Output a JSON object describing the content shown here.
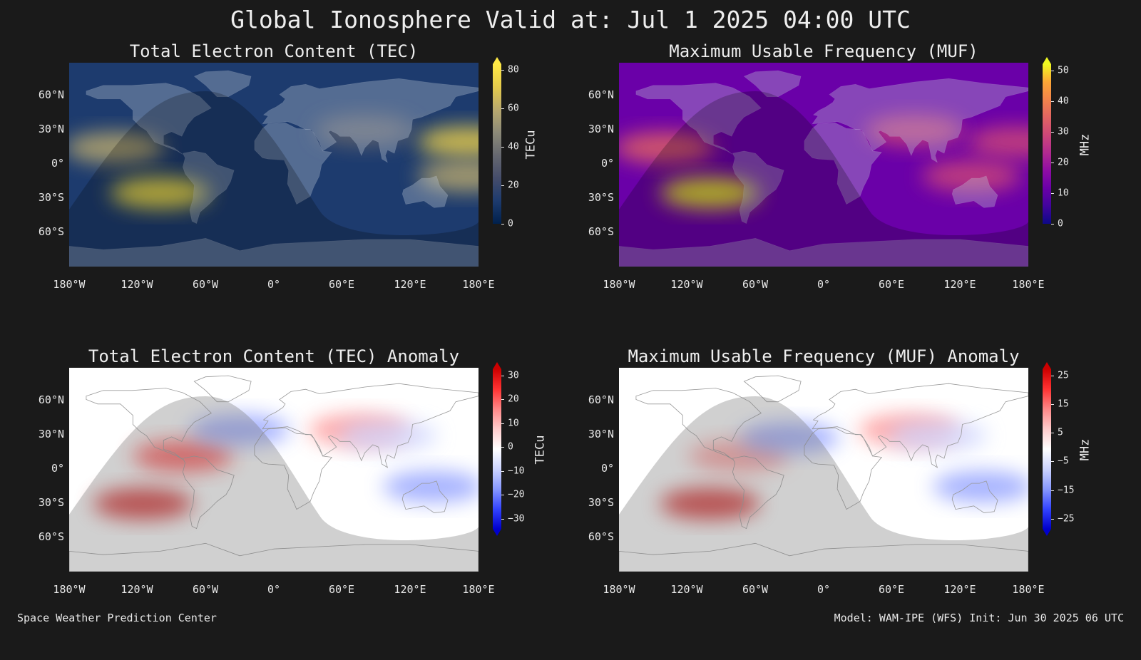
{
  "main_title": "Global Ionosphere Valid at: Jul 1 2025 04:00 UTC",
  "footer": {
    "left": "Space Weather Prediction Center",
    "right": "Model: WAM-IPE (WFS) Init: Jun 30 2025 06 UTC"
  },
  "chart_data": [
    {
      "type": "heatmap",
      "id": "tec",
      "title": "Total Electron Content (TEC)",
      "colorbar_label": "TECu",
      "colorbar_ticks": [
        "0",
        "20",
        "40",
        "60",
        "80"
      ],
      "colormap": [
        "#00204c",
        "#1d3b6e",
        "#454d6b",
        "#666870",
        "#8c8a78",
        "#b9a96e",
        "#e5cb4c",
        "#ffe945"
      ],
      "xlim": [
        -180,
        180
      ],
      "ylim": [
        -90,
        90
      ],
      "x_ticks": [
        "180°W",
        "120°W",
        "60°W",
        "0°",
        "60°E",
        "120°E",
        "180°E"
      ],
      "y_ticks": [
        "60°N",
        "30°N",
        "0°",
        "30°S",
        "60°S"
      ],
      "features": [
        {
          "lon": -140,
          "lat": 15,
          "value": 60
        },
        {
          "lon": -100,
          "lat": -25,
          "value": 75
        },
        {
          "lon": 170,
          "lat": 20,
          "value": 70
        },
        {
          "lon": 170,
          "lat": -10,
          "value": 55
        },
        {
          "lon": 80,
          "lat": 30,
          "value": 35
        }
      ]
    },
    {
      "type": "heatmap",
      "id": "muf",
      "title": "Maximum Usable Frequency (MUF)",
      "colorbar_label": "MHz",
      "colorbar_ticks": [
        "0",
        "10",
        "20",
        "30",
        "40",
        "50"
      ],
      "colormap": [
        "#0d0887",
        "#41049d",
        "#6a00a8",
        "#8f0da4",
        "#b12a90",
        "#cc4778",
        "#e16462",
        "#f2844b",
        "#fca636",
        "#f0f921"
      ],
      "xlim": [
        -180,
        180
      ],
      "ylim": [
        -90,
        90
      ],
      "x_ticks": [
        "180°W",
        "120°W",
        "60°W",
        "0°",
        "60°E",
        "120°E",
        "180°E"
      ],
      "y_ticks": [
        "60°N",
        "30°N",
        "0°",
        "30°S",
        "60°S"
      ],
      "features": [
        {
          "lon": -140,
          "lat": 15,
          "value": 35
        },
        {
          "lon": -100,
          "lat": -25,
          "value": 48
        },
        {
          "lon": 170,
          "lat": 20,
          "value": 30
        },
        {
          "lon": 130,
          "lat": -10,
          "value": 28
        },
        {
          "lon": 80,
          "lat": 30,
          "value": 28
        }
      ]
    },
    {
      "type": "heatmap",
      "id": "tec_anomaly",
      "title": "Total Electron Content (TEC) Anomaly",
      "colorbar_label": "TECu",
      "colorbar_ticks": [
        "−30",
        "−20",
        "−10",
        "0",
        "10",
        "20",
        "30"
      ],
      "colormap": [
        "#0000cc",
        "#3344ff",
        "#8899ff",
        "#ccd4ff",
        "#ffffff",
        "#ffcccc",
        "#ff8888",
        "#ff3333",
        "#cc0000"
      ],
      "xlim": [
        -180,
        180
      ],
      "ylim": [
        -90,
        90
      ],
      "x_ticks": [
        "180°W",
        "120°W",
        "60°W",
        "0°",
        "60°E",
        "120°E",
        "180°E"
      ],
      "y_ticks": [
        "60°N",
        "30°N",
        "0°",
        "30°S",
        "60°S"
      ],
      "features": [
        {
          "lon": -80,
          "lat": 12,
          "value": 25
        },
        {
          "lon": -115,
          "lat": -30,
          "value": 28
        },
        {
          "lon": 75,
          "lat": 35,
          "value": 12
        },
        {
          "lon": -30,
          "lat": 35,
          "value": -12
        },
        {
          "lon": 140,
          "lat": -15,
          "value": -15
        },
        {
          "lon": 100,
          "lat": 30,
          "value": -10
        }
      ]
    },
    {
      "type": "heatmap",
      "id": "muf_anomaly",
      "title": "Maximum Usable Frequency (MUF) Anomaly",
      "colorbar_label": "MHz",
      "colorbar_ticks": [
        "−25",
        "−15",
        "−5",
        "5",
        "15",
        "25"
      ],
      "colormap": [
        "#0000cc",
        "#3344ff",
        "#8899ff",
        "#ccd4ff",
        "#ffffff",
        "#ffcccc",
        "#ff8888",
        "#ff3333",
        "#cc0000"
      ],
      "xlim": [
        -180,
        180
      ],
      "ylim": [
        -90,
        90
      ],
      "x_ticks": [
        "180°W",
        "120°W",
        "60°W",
        "0°",
        "60°E",
        "120°E",
        "180°E"
      ],
      "y_ticks": [
        "60°N",
        "30°N",
        "0°",
        "30°S",
        "60°S"
      ],
      "features": [
        {
          "lon": -100,
          "lat": -30,
          "value": 22
        },
        {
          "lon": -75,
          "lat": 12,
          "value": 15
        },
        {
          "lon": 75,
          "lat": 35,
          "value": 12
        },
        {
          "lon": -30,
          "lat": 28,
          "value": -10
        },
        {
          "lon": 140,
          "lat": -15,
          "value": -12
        },
        {
          "lon": 100,
          "lat": 30,
          "value": -8
        }
      ]
    }
  ]
}
